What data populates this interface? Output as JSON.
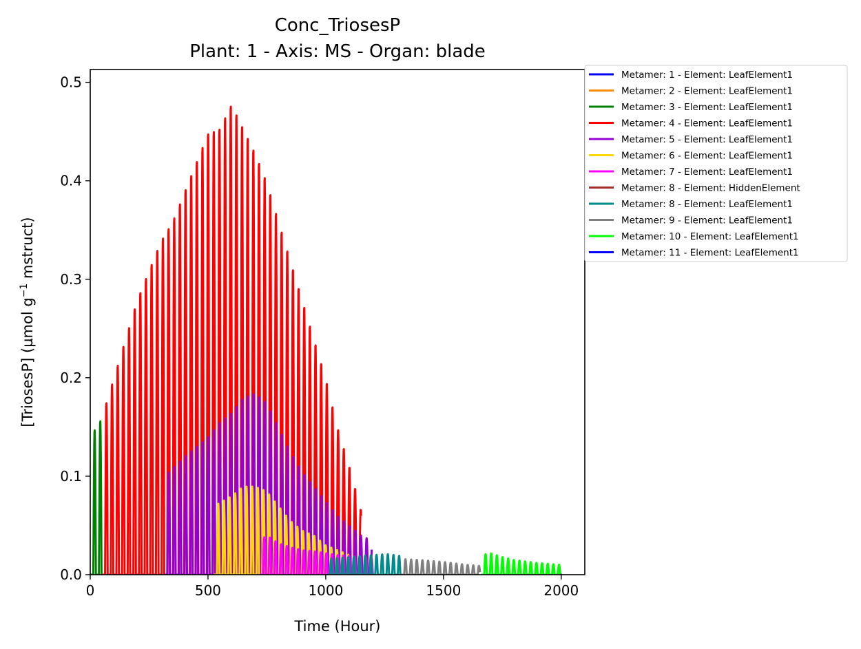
{
  "chart_data": {
    "type": "line",
    "title": "Conc_TriosesP",
    "subtitle": "Plant: 1 - Axis: MS - Organ: blade",
    "xlabel": "Time (Hour)",
    "ylabel_prefix": "[TriosesP] (µmol g",
    "ylabel_sup": "−1",
    "ylabel_suffix": " mstruct)",
    "xlim": [
      0,
      2100
    ],
    "ylim": [
      0,
      0.513
    ],
    "xticks": [
      0,
      500,
      1000,
      1500,
      2000
    ],
    "xtick_labels": [
      "0",
      "500",
      "1000",
      "1500",
      "2000"
    ],
    "yticks": [
      0,
      0.1,
      0.2,
      0.3,
      0.4,
      0.5
    ],
    "ytick_labels": [
      "0.0",
      "0.1",
      "0.2",
      "0.3",
      "0.4",
      "0.5"
    ],
    "grid": false,
    "legend_position": "outside-top-right",
    "period_hours": 24,
    "series": [
      {
        "name": "Metamer: 1 - Element: LeafElement1",
        "color": "#0000ff",
        "start": 0,
        "end": 0,
        "envelope": []
      },
      {
        "name": "Metamer: 2 - Element: LeafElement1",
        "color": "#ff8c00",
        "start": 0,
        "end": 0,
        "envelope": []
      },
      {
        "name": "Metamer: 3 - Element: LeafElement1",
        "color": "#008000",
        "start": 0,
        "end": 48,
        "envelope": [
          [
            0,
            0.14
          ],
          [
            20,
            0.148
          ],
          [
            35,
            0.155
          ],
          [
            48,
            0.158
          ]
        ]
      },
      {
        "name": "Metamer: 4 - Element: LeafElement1",
        "color": "#ff0000",
        "start": 50,
        "end": 1150,
        "envelope": [
          [
            50,
            0.16
          ],
          [
            100,
            0.2
          ],
          [
            150,
            0.24
          ],
          [
            200,
            0.28
          ],
          [
            250,
            0.31
          ],
          [
            300,
            0.34
          ],
          [
            350,
            0.36
          ],
          [
            400,
            0.39
          ],
          [
            450,
            0.42
          ],
          [
            500,
            0.45
          ],
          [
            550,
            0.455
          ],
          [
            600,
            0.48
          ],
          [
            650,
            0.455
          ],
          [
            700,
            0.43
          ],
          [
            750,
            0.4
          ],
          [
            800,
            0.36
          ],
          [
            850,
            0.32
          ],
          [
            900,
            0.28
          ],
          [
            950,
            0.24
          ],
          [
            1000,
            0.2
          ],
          [
            1050,
            0.15
          ],
          [
            1100,
            0.11
          ],
          [
            1150,
            0.065
          ]
        ]
      },
      {
        "name": "Metamer: 5 - Element: LeafElement1",
        "color": "#9400d3",
        "start": 315,
        "end": 1195,
        "envelope": [
          [
            315,
            0.1
          ],
          [
            400,
            0.12
          ],
          [
            500,
            0.14
          ],
          [
            550,
            0.155
          ],
          [
            600,
            0.165
          ],
          [
            650,
            0.18
          ],
          [
            700,
            0.185
          ],
          [
            750,
            0.175
          ],
          [
            800,
            0.15
          ],
          [
            850,
            0.125
          ],
          [
            900,
            0.105
          ],
          [
            950,
            0.09
          ],
          [
            1000,
            0.075
          ],
          [
            1050,
            0.06
          ],
          [
            1100,
            0.05
          ],
          [
            1150,
            0.04
          ],
          [
            1195,
            0.035
          ]
        ]
      },
      {
        "name": "Metamer: 6 - Element: LeafElement1",
        "color": "#ffd700",
        "start": 525,
        "end": 1150,
        "envelope": [
          [
            525,
            0.07
          ],
          [
            600,
            0.08
          ],
          [
            650,
            0.09
          ],
          [
            700,
            0.09
          ],
          [
            750,
            0.085
          ],
          [
            800,
            0.07
          ],
          [
            850,
            0.055
          ],
          [
            900,
            0.045
          ],
          [
            950,
            0.04
          ],
          [
            1000,
            0.03
          ],
          [
            1050,
            0.025
          ],
          [
            1100,
            0.02
          ],
          [
            1150,
            0.015
          ]
        ]
      },
      {
        "name": "Metamer: 7 - Element: LeafElement1",
        "color": "#ff00ff",
        "start": 720,
        "end": 1200,
        "envelope": [
          [
            720,
            0.035
          ],
          [
            750,
            0.04
          ],
          [
            800,
            0.032
          ],
          [
            850,
            0.028
          ],
          [
            900,
            0.025
          ],
          [
            950,
            0.024
          ],
          [
            1000,
            0.022
          ],
          [
            1050,
            0.02
          ],
          [
            1100,
            0.019
          ],
          [
            1150,
            0.018
          ],
          [
            1200,
            0.017
          ]
        ]
      },
      {
        "name": "Metamer: 8 - Element: HiddenElement",
        "color": "#a52a2a",
        "start": 0,
        "end": 0,
        "envelope": []
      },
      {
        "name": "Metamer: 8 - Element: LeafElement1",
        "color": "#008b8b",
        "start": 1005,
        "end": 1320,
        "envelope": [
          [
            1005,
            0.016
          ],
          [
            1100,
            0.018
          ],
          [
            1200,
            0.02
          ],
          [
            1260,
            0.021
          ],
          [
            1320,
            0.019
          ]
        ]
      },
      {
        "name": "Metamer: 9 - Element: LeafElement1",
        "color": "#808080",
        "start": 1320,
        "end": 1655,
        "envelope": [
          [
            1320,
            0.016
          ],
          [
            1400,
            0.015
          ],
          [
            1500,
            0.013
          ],
          [
            1600,
            0.01
          ],
          [
            1655,
            0.009
          ]
        ]
      },
      {
        "name": "Metamer: 10 - Element: LeafElement1",
        "color": "#00ff00",
        "start": 1660,
        "end": 2000,
        "envelope": [
          [
            1660,
            0.02
          ],
          [
            1700,
            0.022
          ],
          [
            1750,
            0.018
          ],
          [
            1800,
            0.015
          ],
          [
            1900,
            0.012
          ],
          [
            2000,
            0.01
          ]
        ]
      },
      {
        "name": "Metamer: 11 - Element: LeafElement1",
        "color": "#0000ff",
        "start": 1998,
        "end": 2002,
        "envelope": [
          [
            1998,
            0.005
          ],
          [
            2002,
            0.005
          ]
        ]
      }
    ]
  }
}
